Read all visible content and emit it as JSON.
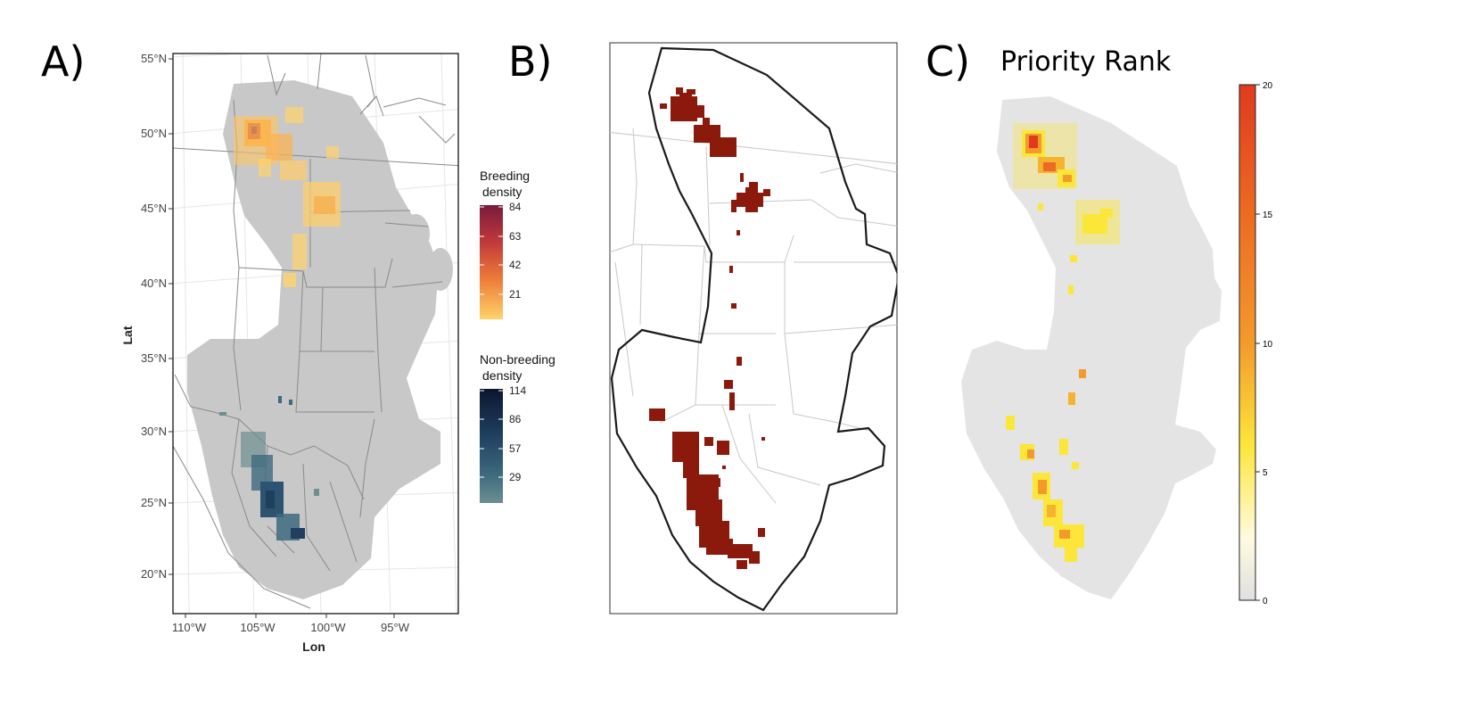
{
  "panels": {
    "a": {
      "letter": "A)"
    },
    "b": {
      "letter": "B)"
    },
    "c": {
      "letter": "C)",
      "title": "Priority Rank"
    }
  },
  "map_a": {
    "ylabel": "Lat",
    "xlabel": "Lon",
    "lat_ticks": [
      "55°N",
      "50°N",
      "45°N",
      "40°N",
      "35°N",
      "30°N",
      "25°N",
      "20°N"
    ],
    "lon_ticks": [
      "110°W",
      "105°W",
      "100°W",
      "95°W"
    ],
    "legend_breeding": {
      "title_line1": "Breeding",
      "title_line2": "density",
      "ticks": [
        "84",
        "63",
        "42",
        "21"
      ],
      "range": [
        0,
        84
      ],
      "colors": [
        "#7a1a3c",
        "#c23a3a",
        "#ee7e3a",
        "#ffd36a"
      ]
    },
    "legend_nonbreeding": {
      "title_line1": "Non-breeding",
      "title_line2": "density",
      "ticks": [
        "114",
        "86",
        "57",
        "29"
      ],
      "range": [
        0,
        114
      ],
      "colors": [
        "#0b1630",
        "#1f3f5f",
        "#3d6a7e",
        "#6c8f92"
      ]
    },
    "range_color": "#c8c8c8",
    "border_color": "#7f7f7f"
  },
  "map_b": {
    "highlight_color": "#8b1a0c"
  },
  "map_c": {
    "scale_ticks": [
      "20",
      "15",
      "10",
      "5",
      "0"
    ],
    "scale_range": [
      0,
      20
    ],
    "scale_colors": [
      "#e03a1e",
      "#f39a2b",
      "#fce63a",
      "#fffbe0",
      "#e0e0e0"
    ],
    "range_color": "#e4e4e4"
  }
}
